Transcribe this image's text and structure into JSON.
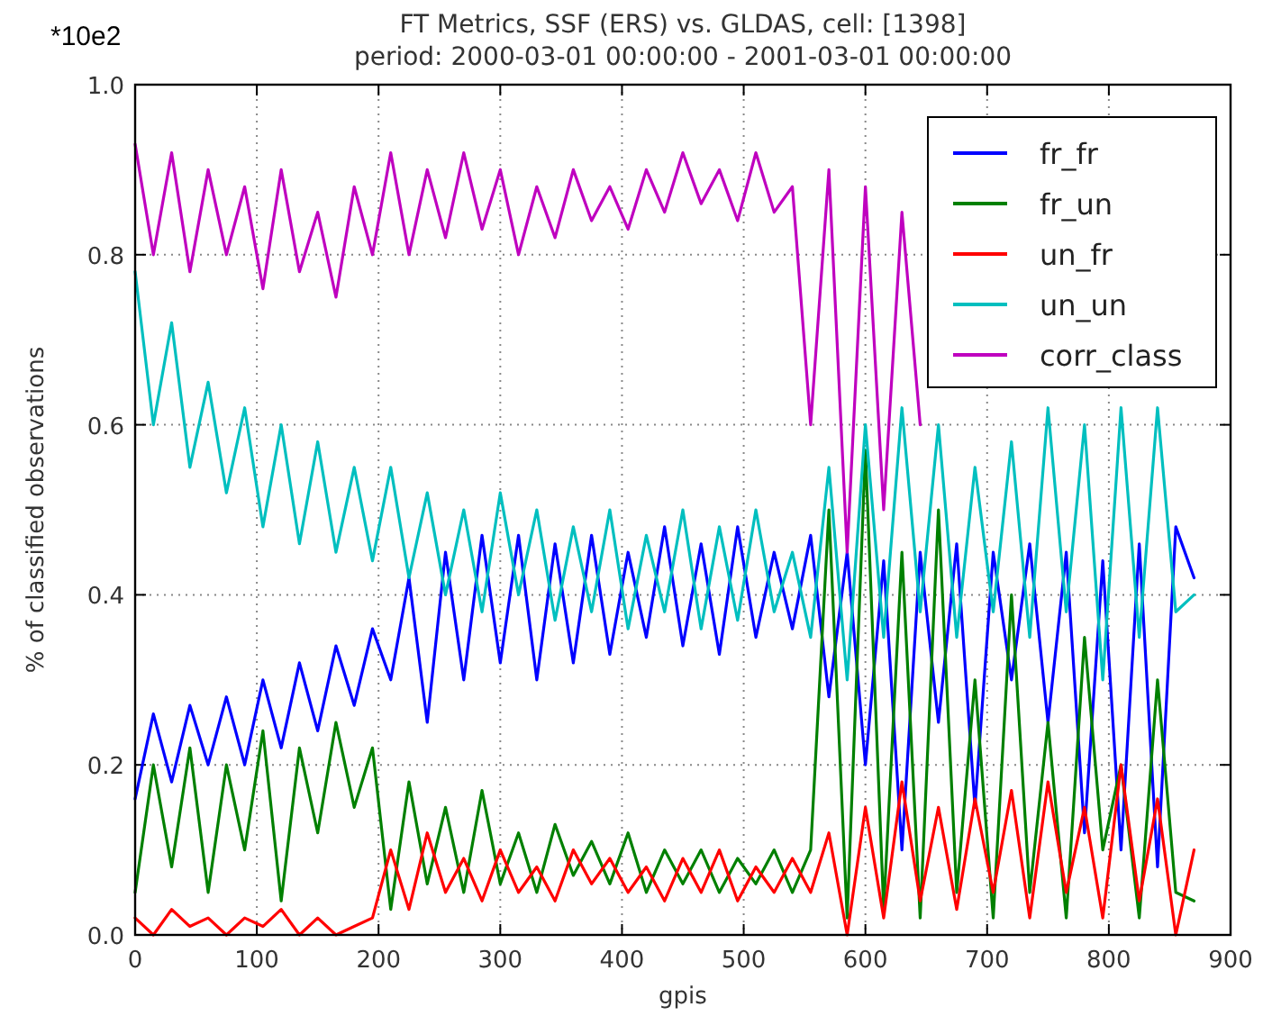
{
  "chart_data": {
    "type": "line",
    "title": "FT Metrics, SSF (ERS) vs. GLDAS, cell: [1398]",
    "subtitle": "period: 2000-03-01 00:00:00 - 2001-03-01 00:00:00",
    "xlabel": "gpis",
    "ylabel": "% of classified observations",
    "annotations": [
      "*10e2"
    ],
    "x": [
      0,
      15,
      30,
      45,
      60,
      75,
      90,
      105,
      120,
      135,
      150,
      165,
      180,
      195,
      210,
      225,
      240,
      255,
      270,
      285,
      300,
      315,
      330,
      345,
      360,
      375,
      390,
      405,
      420,
      435,
      450,
      465,
      480,
      495,
      510,
      525,
      540,
      555,
      570,
      585,
      600,
      615,
      630,
      645,
      660,
      675,
      690,
      705,
      720,
      735,
      750,
      765,
      780,
      795,
      810,
      825,
      840,
      855,
      870
    ],
    "series": [
      {
        "name": "fr_fr",
        "color": "#0000ff",
        "values": [
          0.16,
          0.26,
          0.18,
          0.27,
          0.2,
          0.28,
          0.2,
          0.3,
          0.22,
          0.32,
          0.24,
          0.34,
          0.27,
          0.36,
          0.3,
          0.42,
          0.25,
          0.45,
          0.3,
          0.47,
          0.32,
          0.47,
          0.3,
          0.46,
          0.32,
          0.47,
          0.33,
          0.45,
          0.35,
          0.48,
          0.34,
          0.46,
          0.33,
          0.48,
          0.35,
          0.45,
          0.36,
          0.47,
          0.28,
          0.45,
          0.2,
          0.44,
          0.1,
          0.45,
          0.25,
          0.46,
          0.15,
          0.45,
          0.3,
          0.46,
          0.25,
          0.45,
          0.12,
          0.44,
          0.1,
          0.46,
          0.08,
          0.48,
          0.42
        ]
      },
      {
        "name": "fr_un",
        "color": "#008000",
        "values": [
          0.05,
          0.2,
          0.08,
          0.22,
          0.05,
          0.2,
          0.1,
          0.24,
          0.04,
          0.22,
          0.12,
          0.25,
          0.15,
          0.22,
          0.03,
          0.18,
          0.06,
          0.15,
          0.05,
          0.17,
          0.06,
          0.12,
          0.05,
          0.13,
          0.07,
          0.11,
          0.06,
          0.12,
          0.05,
          0.1,
          0.06,
          0.1,
          0.05,
          0.09,
          0.06,
          0.1,
          0.05,
          0.1,
          0.5,
          0.02,
          0.57,
          0.03,
          0.45,
          0.02,
          0.5,
          0.05,
          0.3,
          0.02,
          0.4,
          0.05,
          0.25,
          0.02,
          0.35,
          0.1,
          0.2,
          0.02,
          0.3,
          0.05,
          0.04
        ]
      },
      {
        "name": "un_fr",
        "color": "#ff0000",
        "values": [
          0.02,
          0,
          0.03,
          0.01,
          0.02,
          0,
          0.02,
          0.01,
          0.03,
          0,
          0.02,
          0,
          0.01,
          0.02,
          0.1,
          0.03,
          0.12,
          0.05,
          0.09,
          0.04,
          0.1,
          0.05,
          0.08,
          0.04,
          0.1,
          0.06,
          0.09,
          0.05,
          0.08,
          0.04,
          0.09,
          0.05,
          0.1,
          0.04,
          0.08,
          0.05,
          0.09,
          0.05,
          0.12,
          0,
          0.15,
          0.02,
          0.18,
          0.04,
          0.15,
          0.03,
          0.16,
          0.05,
          0.17,
          0.02,
          0.18,
          0.05,
          0.15,
          0.02,
          0.2,
          0.04,
          0.16,
          0,
          0.1
        ]
      },
      {
        "name": "un_un",
        "color": "#00bfbf",
        "values": [
          0.78,
          0.6,
          0.72,
          0.55,
          0.65,
          0.52,
          0.62,
          0.48,
          0.6,
          0.46,
          0.58,
          0.45,
          0.55,
          0.44,
          0.55,
          0.42,
          0.52,
          0.4,
          0.5,
          0.38,
          0.52,
          0.4,
          0.5,
          0.37,
          0.48,
          0.38,
          0.5,
          0.36,
          0.47,
          0.38,
          0.5,
          0.36,
          0.48,
          0.37,
          0.5,
          0.38,
          0.45,
          0.35,
          0.55,
          0.3,
          0.6,
          0.35,
          0.62,
          0.38,
          0.6,
          0.35,
          0.55,
          0.38,
          0.58,
          0.35,
          0.62,
          0.38,
          0.6,
          0.3,
          0.62,
          0.35,
          0.62,
          0.38,
          0.4
        ]
      },
      {
        "name": "corr_class",
        "color": "#bf00bf",
        "values": [
          0.93,
          0.8,
          0.92,
          0.78,
          0.9,
          0.8,
          0.88,
          0.76,
          0.9,
          0.78,
          0.85,
          0.75,
          0.88,
          0.8,
          0.92,
          0.8,
          0.9,
          0.82,
          0.92,
          0.83,
          0.9,
          0.8,
          0.88,
          0.82,
          0.9,
          0.84,
          0.88,
          0.83,
          0.9,
          0.85,
          0.92,
          0.86,
          0.9,
          0.84,
          0.92,
          0.85,
          0.88,
          0.6,
          0.9,
          0.45,
          0.88,
          0.5,
          0.85,
          0.6,
          null,
          null,
          null,
          null,
          null,
          null,
          null,
          null,
          null,
          null,
          null,
          null,
          null,
          null,
          null
        ]
      }
    ],
    "xlim": [
      0,
      900
    ],
    "xticks": [
      0,
      100,
      200,
      300,
      400,
      500,
      600,
      700,
      800,
      900
    ],
    "ylim": [
      0,
      1
    ],
    "yticks": [
      {
        "value": 0,
        "label": "0.0"
      },
      {
        "value": 0.2,
        "label": "0.2"
      },
      {
        "value": 0.4,
        "label": "0.4"
      },
      {
        "value": 0.6,
        "label": "0.6"
      },
      {
        "value": 0.8,
        "label": "0.8"
      },
      {
        "value": 1,
        "label": "1.0"
      }
    ],
    "grid": true,
    "legend": "top right",
    "line_style": "solid"
  }
}
